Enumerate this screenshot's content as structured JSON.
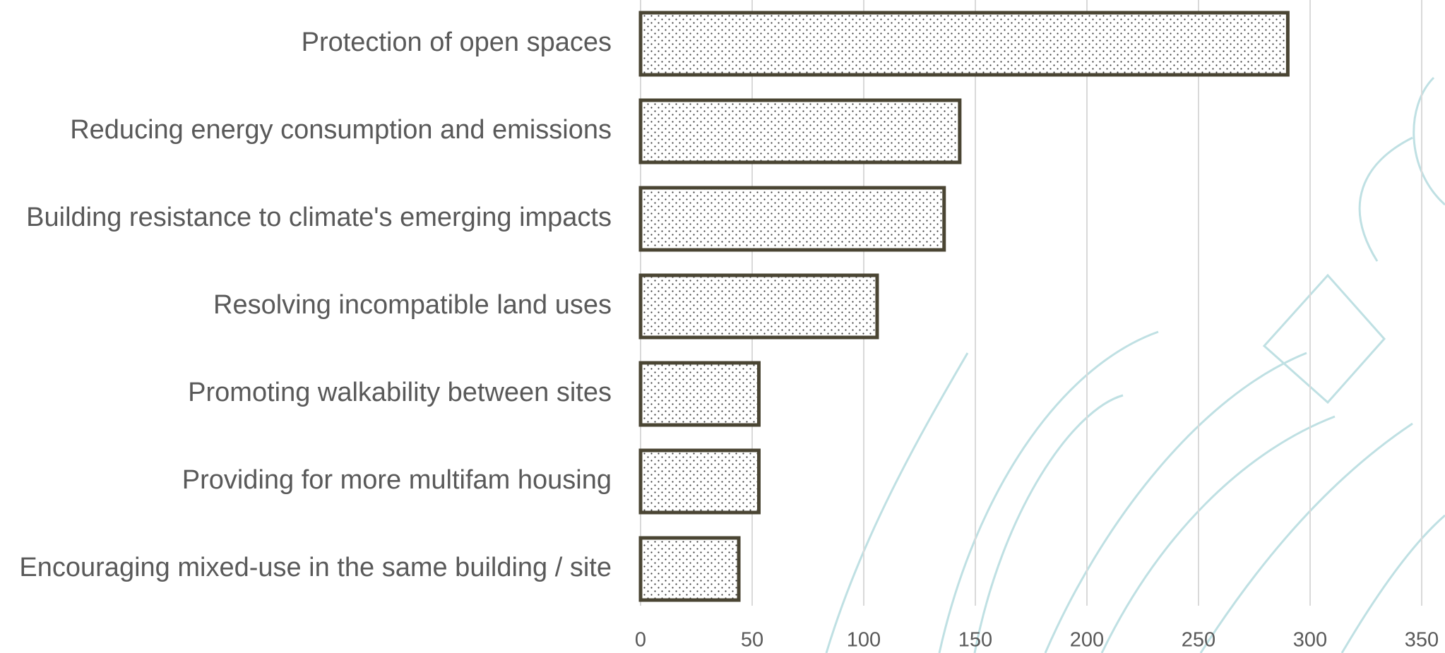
{
  "chart_data": {
    "type": "bar",
    "orientation": "horizontal",
    "categories": [
      "Protection of open spaces",
      "Reducing energy consumption and emissions",
      "Building resistance to climate's emerging impacts",
      "Resolving incompatible land uses",
      "Promoting walkability between sites",
      "Providing for more multifam housing",
      "Encouraging mixed-use in the same building / site"
    ],
    "values": [
      290,
      143,
      136,
      106,
      53,
      53,
      44
    ],
    "color": "#4a4533",
    "xlim": [
      0,
      350
    ],
    "xticks": [
      0,
      50,
      100,
      150,
      200,
      250,
      300,
      350
    ],
    "grid": true
  }
}
